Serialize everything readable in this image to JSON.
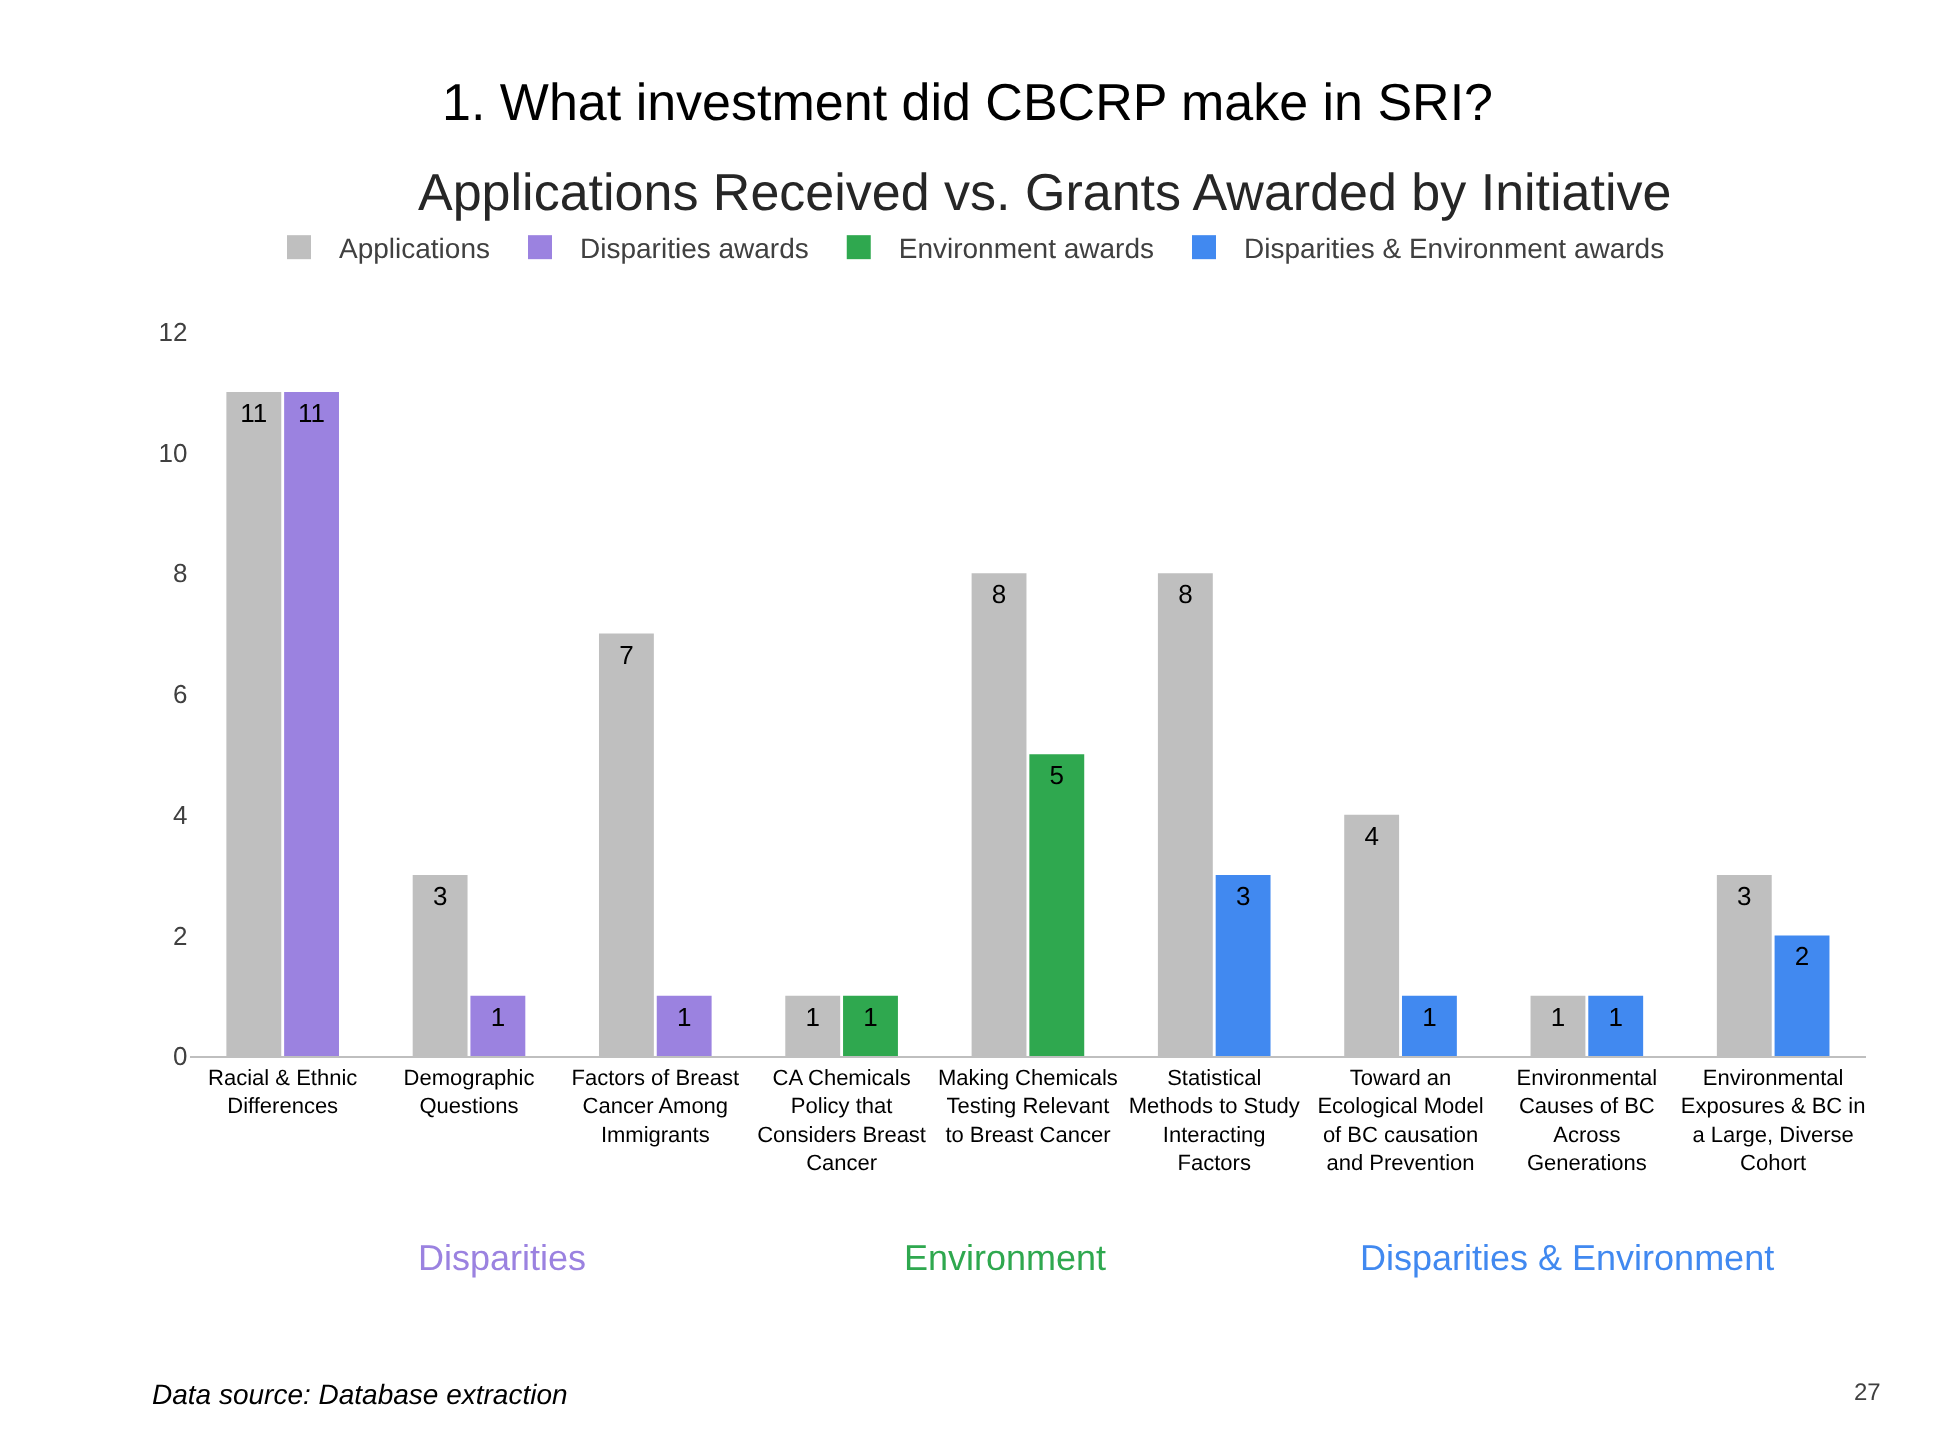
{
  "chart_data": {
    "type": "bar",
    "title": "1. What investment did CBCRP make in SRI?",
    "subtitle": "Applications Received vs. Grants Awarded by Initiative",
    "categories": [
      "Racial & Ethnic Differences",
      "Demographic Questions",
      "Factors of Breast Cancer Among Immigrants",
      "CA Chemicals Policy that Considers Breast Cancer",
      "Making Chemicals Testing Relevant to Breast Cancer",
      "Statistical Methods to Study Interacting Factors",
      "Toward an Ecological Model of BC causation and Prevention",
      "Environmental Causes of BC Across Generations",
      "Environmental Exposures & BC in a Large, Diverse Cohort"
    ],
    "series": [
      {
        "name": "Applications",
        "color": "#bfbfbf",
        "values": [
          11,
          3,
          7,
          1,
          8,
          8,
          4,
          1,
          3
        ]
      },
      {
        "name": "Disparities awards",
        "color": "#9b82e0",
        "values": [
          11,
          1,
          1,
          null,
          null,
          null,
          null,
          null,
          null
        ]
      },
      {
        "name": "Environment awards",
        "color": "#2fa84f",
        "values": [
          null,
          null,
          null,
          1,
          5,
          null,
          null,
          null,
          null
        ]
      },
      {
        "name": "Disparities & Environment awards",
        "color": "#4189f0",
        "values": [
          null,
          null,
          null,
          null,
          null,
          3,
          1,
          1,
          2
        ]
      }
    ],
    "ylim": [
      0,
      12
    ],
    "yticks": [
      0,
      2,
      4,
      6,
      8,
      10,
      12
    ],
    "grid": false,
    "legend": "top",
    "data_labels": true,
    "annotations": [
      "Disparities",
      "Environment",
      "Disparities & Environment",
      "Data source: Database extraction",
      "27"
    ]
  }
}
